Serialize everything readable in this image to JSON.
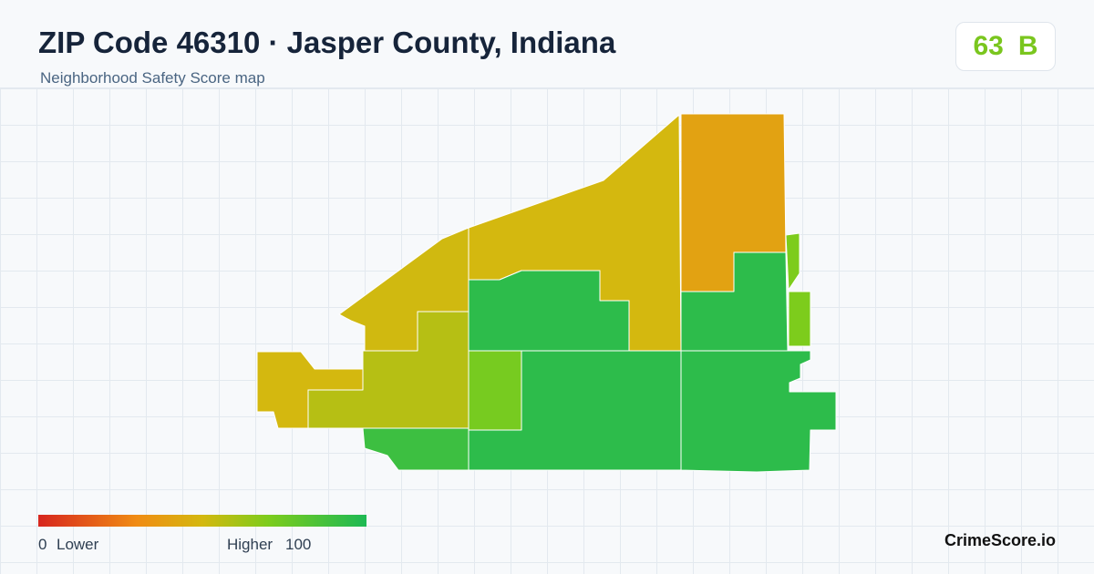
{
  "header": {
    "title": "ZIP Code 46310 · Jasper County, Indiana",
    "subtitle": "Neighborhood Safety Score map"
  },
  "score": {
    "value": 63,
    "grade": "B"
  },
  "legend": {
    "min": 0,
    "min_label": "Lower",
    "max_label": "Higher",
    "max": 100
  },
  "regions": [
    {
      "score": 50
    },
    {
      "score": 51
    },
    {
      "score": 57
    },
    {
      "score": 50
    },
    {
      "score": 40
    },
    {
      "score": 95
    },
    {
      "score": 95
    },
    {
      "score": 70
    },
    {
      "score": 72
    },
    {
      "score": 95
    },
    {
      "score": 95
    },
    {
      "score": 90
    }
  ],
  "brand": "CrimeScore.io"
}
